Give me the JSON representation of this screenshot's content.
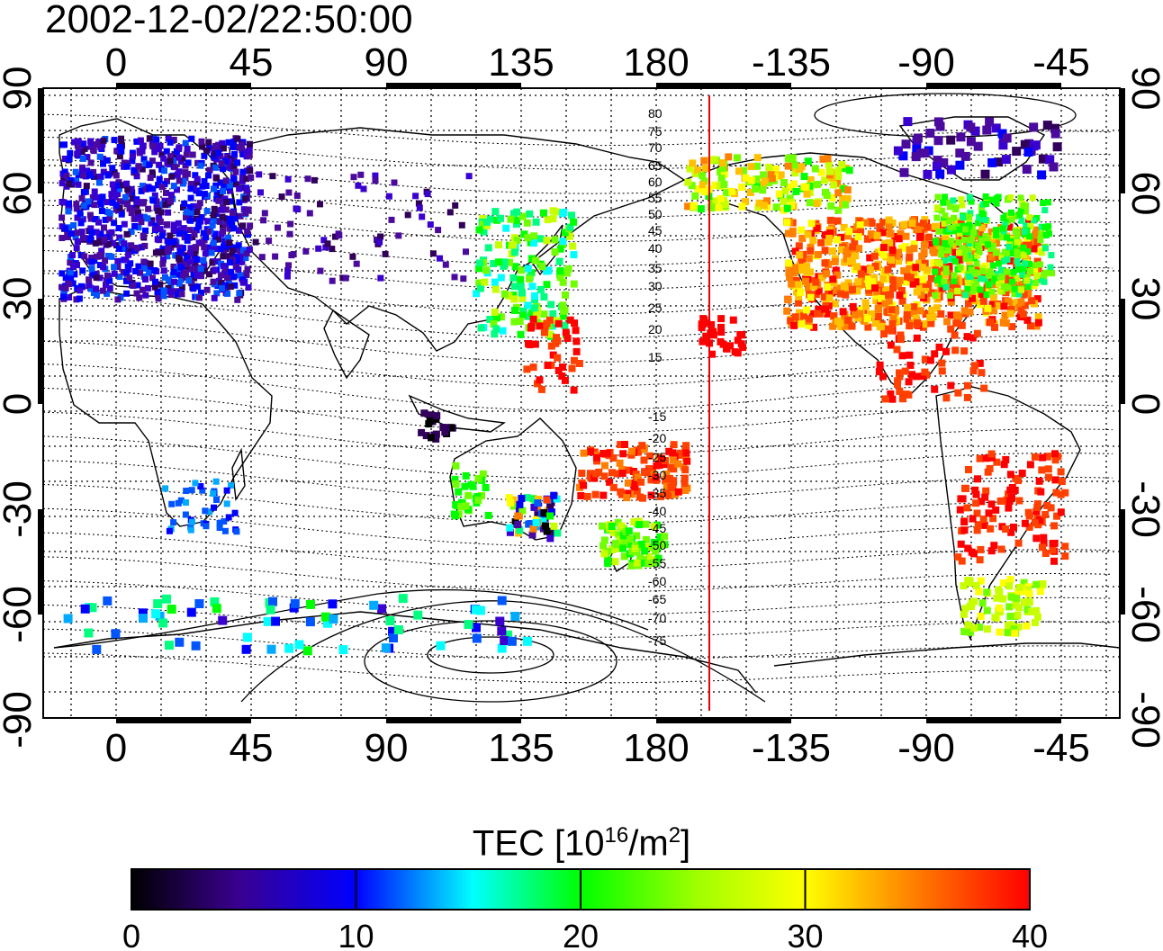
{
  "title": "2002-12-02/22:50:00",
  "map": {
    "lon_tick_labels": [
      "0",
      "45",
      "90",
      "135",
      "180",
      "-135",
      "-90",
      "-45"
    ],
    "lat_tick_labels": [
      "90",
      "60",
      "30",
      "0",
      "-30",
      "-60",
      "-90"
    ],
    "contour_labels_north": [
      "80",
      "75",
      "70",
      "65",
      "60",
      "55",
      "50",
      "45",
      "40",
      "35",
      "30",
      "25",
      "20",
      "15"
    ],
    "contour_labels_south": [
      "-15",
      "-20",
      "-25",
      "-30",
      "-35",
      "-40",
      "-45",
      "-50",
      "-55",
      "-60",
      "-65",
      "-70",
      "-75"
    ],
    "terminator_color": "#e8000b"
  },
  "colorbar": {
    "label_main": "TEC  [10",
    "label_exp1": "16",
    "label_mid": "/m",
    "label_exp2": "2",
    "label_end": "]",
    "tick_labels": [
      "0",
      "10",
      "20",
      "30",
      "40"
    ],
    "colors": [
      "#000000",
      "#3a0080",
      "#0000ff",
      "#00ffff",
      "#00ff00",
      "#ffff00",
      "#ff8000",
      "#ff0000"
    ]
  }
}
